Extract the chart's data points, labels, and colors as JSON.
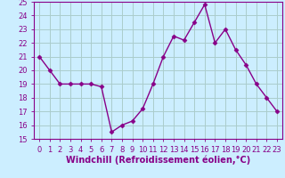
{
  "x": [
    0,
    1,
    2,
    3,
    4,
    5,
    6,
    7,
    8,
    9,
    10,
    11,
    12,
    13,
    14,
    15,
    16,
    17,
    18,
    19,
    20,
    21,
    22,
    23
  ],
  "y": [
    21,
    20,
    19,
    19,
    19,
    19,
    18.8,
    15.5,
    16,
    16.3,
    17.2,
    19,
    21,
    22.5,
    22.2,
    23.5,
    24.8,
    22,
    23,
    21.5,
    20.4,
    19,
    18,
    17
  ],
  "line_color": "#880088",
  "marker": "D",
  "markersize": 2.5,
  "bg_color": "#cceeff",
  "grid_color": "#aacccc",
  "axis_color": "#880088",
  "xlabel": "Windchill (Refroidissement éolien,°C)",
  "xlabel_color": "#880088",
  "ylim": [
    15,
    25
  ],
  "xlim": [
    -0.5,
    23.5
  ],
  "yticks": [
    15,
    16,
    17,
    18,
    19,
    20,
    21,
    22,
    23,
    24,
    25
  ],
  "xticks": [
    0,
    1,
    2,
    3,
    4,
    5,
    6,
    7,
    8,
    9,
    10,
    11,
    12,
    13,
    14,
    15,
    16,
    17,
    18,
    19,
    20,
    21,
    22,
    23
  ],
  "tick_fontsize": 6,
  "xlabel_fontsize": 7,
  "linewidth": 1.0
}
